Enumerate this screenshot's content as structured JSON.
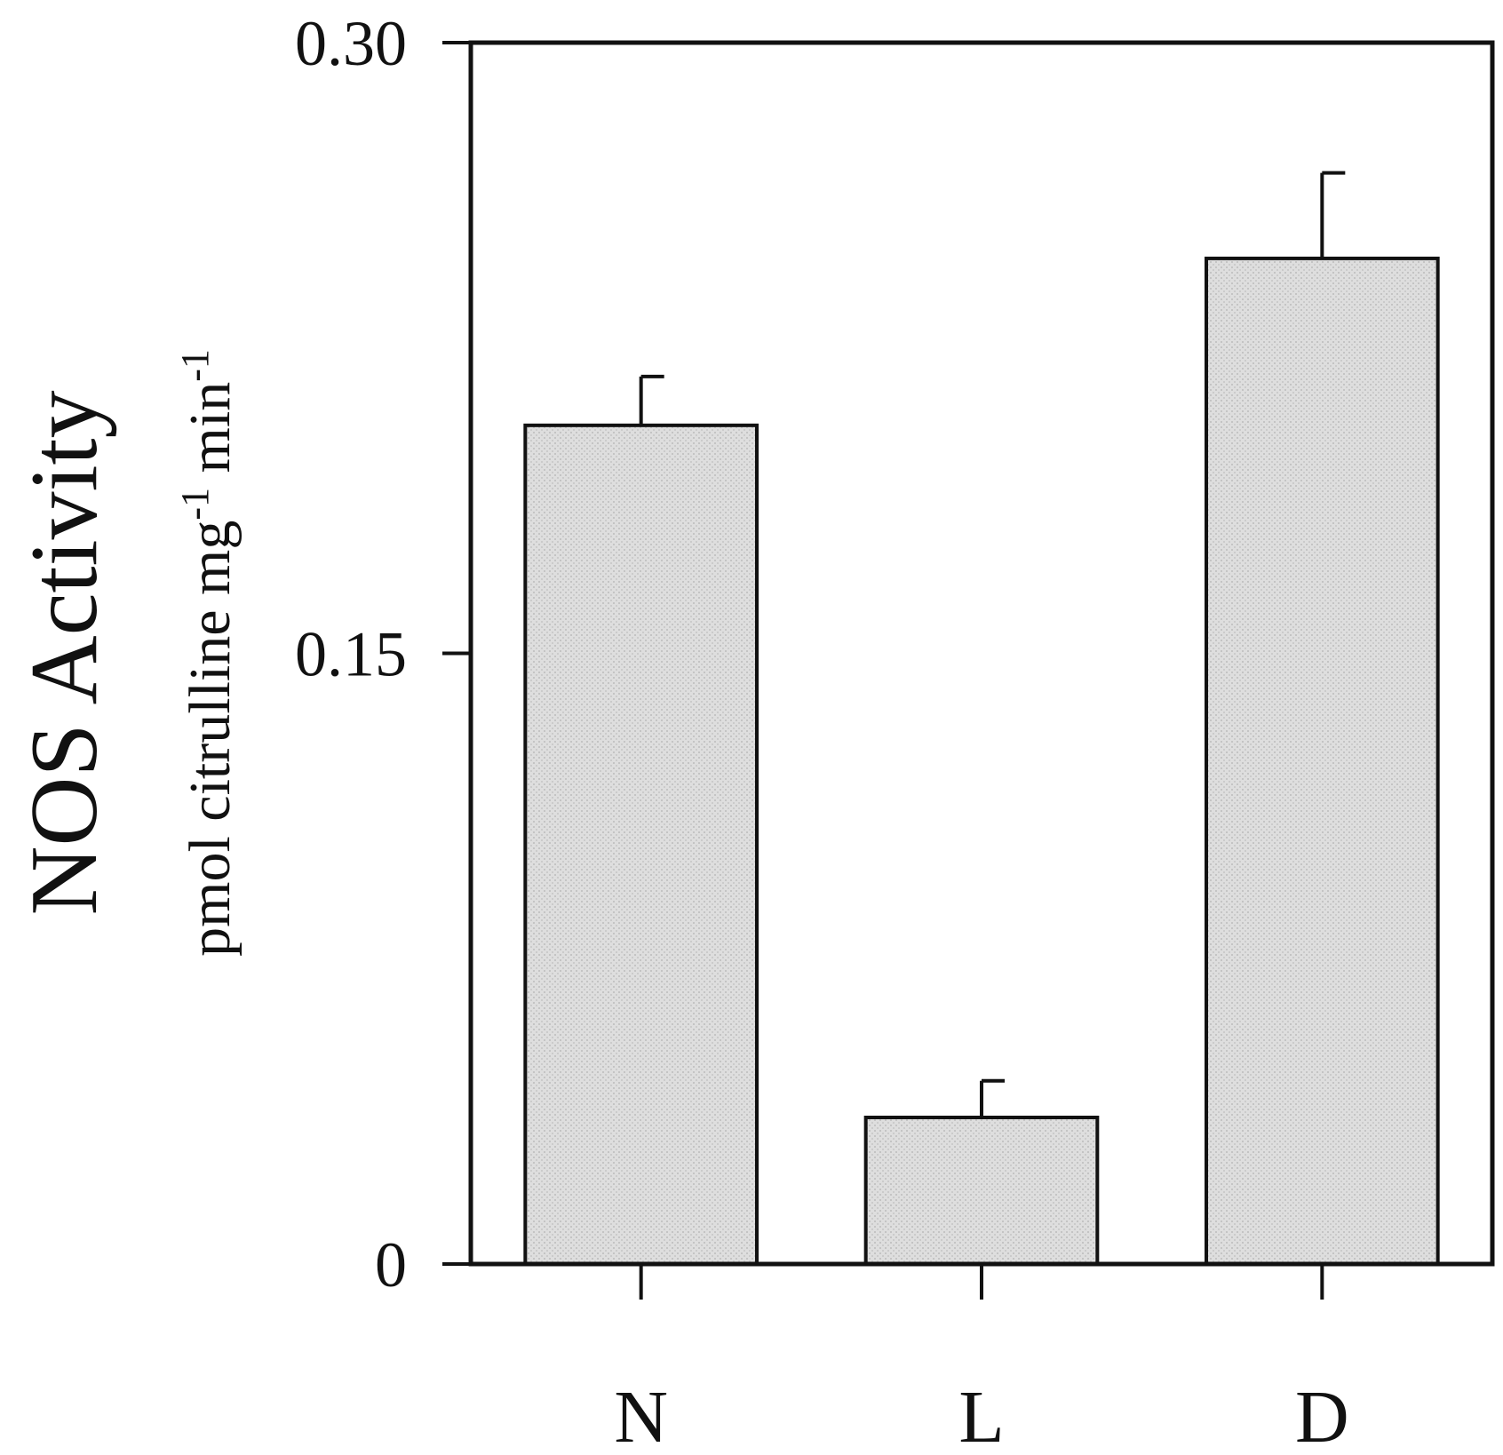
{
  "chart_data": {
    "type": "bar",
    "categories": [
      "N",
      "L",
      "D"
    ],
    "values": [
      0.206,
      0.036,
      0.247
    ],
    "errors": [
      0.012,
      0.009,
      0.021
    ],
    "ylim": [
      0,
      0.3
    ],
    "yticks": [
      "0",
      "0.15",
      "0.30"
    ],
    "ytick_values": [
      0,
      0.15,
      0.3
    ],
    "ylabel": "NOS Activity",
    "ylabel_sub": {
      "p1": "pmol citrulline mg",
      "sup1": "-1",
      "p2": " min",
      "sup2": "-1"
    },
    "xlabel": "",
    "title": "",
    "grid": false,
    "legend": "none",
    "colors": {
      "bar_fill": "#dedede",
      "stroke": "#111111"
    }
  }
}
